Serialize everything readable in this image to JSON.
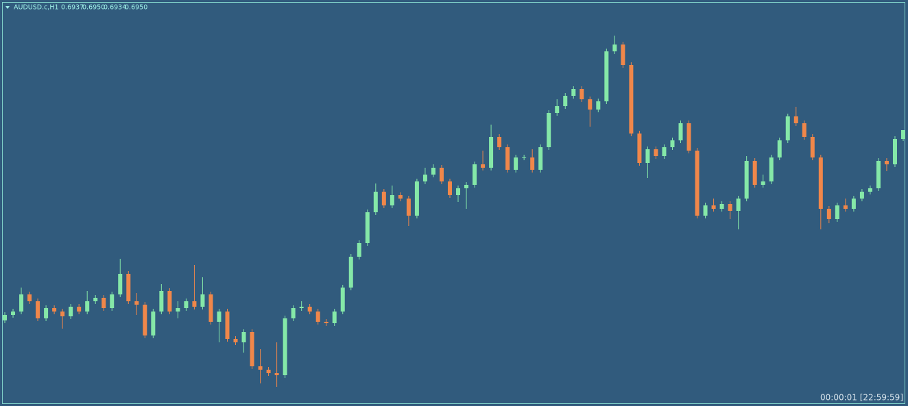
{
  "chart_data": {
    "type": "candlestick",
    "title": "AUDUSD.c,H1",
    "header_values": [
      "0.6937",
      "0.6950",
      "0.6934",
      "0.6950"
    ],
    "annotation": "00:00:01 [22:59:59]",
    "ylim": [
      0.655,
      0.714
    ],
    "grid": false,
    "up_color": "#85e8a8",
    "down_color": "#f0874a",
    "open": [
      0.6672,
      0.668,
      0.6685,
      0.671,
      0.67,
      0.6675,
      0.669,
      0.6685,
      0.6678,
      0.6692,
      0.6685,
      0.67,
      0.6705,
      0.669,
      0.671,
      0.674,
      0.67,
      0.6695,
      0.665,
      0.6685,
      0.6715,
      0.6685,
      0.669,
      0.67,
      0.6692,
      0.671,
      0.667,
      0.6685,
      0.6645,
      0.664,
      0.6655,
      0.6605,
      0.66,
      0.6595,
      0.6592,
      0.6675,
      0.669,
      0.6692,
      0.6685,
      0.667,
      0.6668,
      0.6685,
      0.672,
      0.6765,
      0.6785,
      0.683,
      0.686,
      0.684,
      0.6855,
      0.685,
      0.6825,
      0.6875,
      0.6885,
      0.6895,
      0.6875,
      0.6855,
      0.6865,
      0.687,
      0.69,
      0.6895,
      0.694,
      0.6925,
      0.6892,
      0.691,
      0.691,
      0.6892,
      0.6925,
      0.6975,
      0.6985,
      0.7,
      0.701,
      0.6995,
      0.698,
      0.6992,
      0.7065,
      0.7075,
      0.7045,
      0.6945,
      0.6902,
      0.6922,
      0.6912,
      0.6925,
      0.6935,
      0.696,
      0.692,
      0.6825,
      0.684,
      0.6835,
      0.6842,
      0.6832,
      0.685,
      0.6905,
      0.687,
      0.6875,
      0.691,
      0.6935,
      0.697,
      0.696,
      0.694,
      0.691,
      0.6835,
      0.682,
      0.684,
      0.6835,
      0.685,
      0.686,
      0.6865,
      0.6905,
      0.69,
      0.6937
    ],
    "high": [
      0.6684,
      0.6689,
      0.672,
      0.6714,
      0.6704,
      0.6694,
      0.6694,
      0.6689,
      0.6696,
      0.6696,
      0.6715,
      0.6709,
      0.6709,
      0.6714,
      0.6762,
      0.6744,
      0.6712,
      0.6699,
      0.6689,
      0.6725,
      0.6719,
      0.67,
      0.6704,
      0.6753,
      0.6735,
      0.6714,
      0.6689,
      0.6689,
      0.6649,
      0.6659,
      0.6659,
      0.663,
      0.6604,
      0.664,
      0.6679,
      0.6694,
      0.67,
      0.6696,
      0.6689,
      0.6674,
      0.6689,
      0.6724,
      0.6769,
      0.6789,
      0.6834,
      0.6872,
      0.6864,
      0.6869,
      0.6859,
      0.6854,
      0.6879,
      0.6895,
      0.69,
      0.6899,
      0.6879,
      0.6869,
      0.6874,
      0.6904,
      0.692,
      0.6958,
      0.6944,
      0.6929,
      0.6914,
      0.6914,
      0.6922,
      0.6929,
      0.6979,
      0.6995,
      0.7004,
      0.7014,
      0.7014,
      0.6999,
      0.6996,
      0.7069,
      0.7088,
      0.7079,
      0.7049,
      0.6949,
      0.6926,
      0.6926,
      0.6929,
      0.6939,
      0.6964,
      0.6964,
      0.6924,
      0.6844,
      0.685,
      0.6846,
      0.6846,
      0.6854,
      0.6912,
      0.6909,
      0.6885,
      0.6914,
      0.6939,
      0.6974,
      0.6984,
      0.6964,
      0.6944,
      0.6914,
      0.6839,
      0.6844,
      0.685,
      0.6854,
      0.6864,
      0.6869,
      0.6909,
      0.6909,
      0.6941,
      0.695
    ],
    "low": [
      0.6668,
      0.6676,
      0.6681,
      0.6696,
      0.6671,
      0.6671,
      0.6681,
      0.666,
      0.6674,
      0.6681,
      0.6681,
      0.6696,
      0.6686,
      0.6686,
      0.6706,
      0.6696,
      0.668,
      0.6646,
      0.6646,
      0.6681,
      0.6681,
      0.6675,
      0.6686,
      0.6688,
      0.6688,
      0.6666,
      0.664,
      0.6641,
      0.6636,
      0.6625,
      0.6601,
      0.658,
      0.6591,
      0.6575,
      0.6588,
      0.6671,
      0.6686,
      0.6681,
      0.6666,
      0.6664,
      0.6664,
      0.6681,
      0.6716,
      0.6761,
      0.6781,
      0.6826,
      0.6836,
      0.6836,
      0.6846,
      0.681,
      0.6821,
      0.6871,
      0.6881,
      0.6871,
      0.6851,
      0.6845,
      0.6835,
      0.6866,
      0.6891,
      0.6891,
      0.6921,
      0.6888,
      0.6888,
      0.6906,
      0.6888,
      0.6888,
      0.6921,
      0.6971,
      0.6981,
      0.6996,
      0.6991,
      0.6955,
      0.6976,
      0.6988,
      0.7061,
      0.7041,
      0.6941,
      0.6898,
      0.688,
      0.6908,
      0.6908,
      0.6921,
      0.6931,
      0.6916,
      0.6821,
      0.6821,
      0.6831,
      0.6831,
      0.682,
      0.6805,
      0.6846,
      0.6866,
      0.6866,
      0.6871,
      0.6906,
      0.6931,
      0.6956,
      0.6936,
      0.6906,
      0.6805,
      0.6814,
      0.6816,
      0.6831,
      0.6831,
      0.6846,
      0.6856,
      0.6861,
      0.689,
      0.6896,
      0.6934
    ],
    "close": [
      0.668,
      0.6685,
      0.671,
      0.67,
      0.6675,
      0.669,
      0.6685,
      0.6678,
      0.6692,
      0.6685,
      0.67,
      0.6705,
      0.669,
      0.671,
      0.674,
      0.67,
      0.6695,
      0.665,
      0.6685,
      0.6715,
      0.6685,
      0.669,
      0.67,
      0.6692,
      0.671,
      0.667,
      0.6685,
      0.6645,
      0.664,
      0.6655,
      0.6605,
      0.66,
      0.6595,
      0.6592,
      0.6675,
      0.669,
      0.6692,
      0.6685,
      0.667,
      0.6668,
      0.6685,
      0.672,
      0.6765,
      0.6785,
      0.683,
      0.686,
      0.684,
      0.6855,
      0.685,
      0.6825,
      0.6875,
      0.6885,
      0.6895,
      0.6875,
      0.6855,
      0.6865,
      0.687,
      0.69,
      0.6895,
      0.694,
      0.6925,
      0.6892,
      0.691,
      0.691,
      0.6892,
      0.6925,
      0.6975,
      0.6985,
      0.7,
      0.701,
      0.6995,
      0.698,
      0.6992,
      0.7065,
      0.7075,
      0.7045,
      0.6945,
      0.6902,
      0.6922,
      0.6912,
      0.6925,
      0.6935,
      0.696,
      0.692,
      0.6825,
      0.684,
      0.6835,
      0.6842,
      0.6832,
      0.685,
      0.6905,
      0.687,
      0.6875,
      0.691,
      0.6935,
      0.697,
      0.696,
      0.694,
      0.691,
      0.6835,
      0.682,
      0.684,
      0.6835,
      0.685,
      0.686,
      0.6865,
      0.6905,
      0.69,
      0.6937,
      0.695
    ]
  }
}
